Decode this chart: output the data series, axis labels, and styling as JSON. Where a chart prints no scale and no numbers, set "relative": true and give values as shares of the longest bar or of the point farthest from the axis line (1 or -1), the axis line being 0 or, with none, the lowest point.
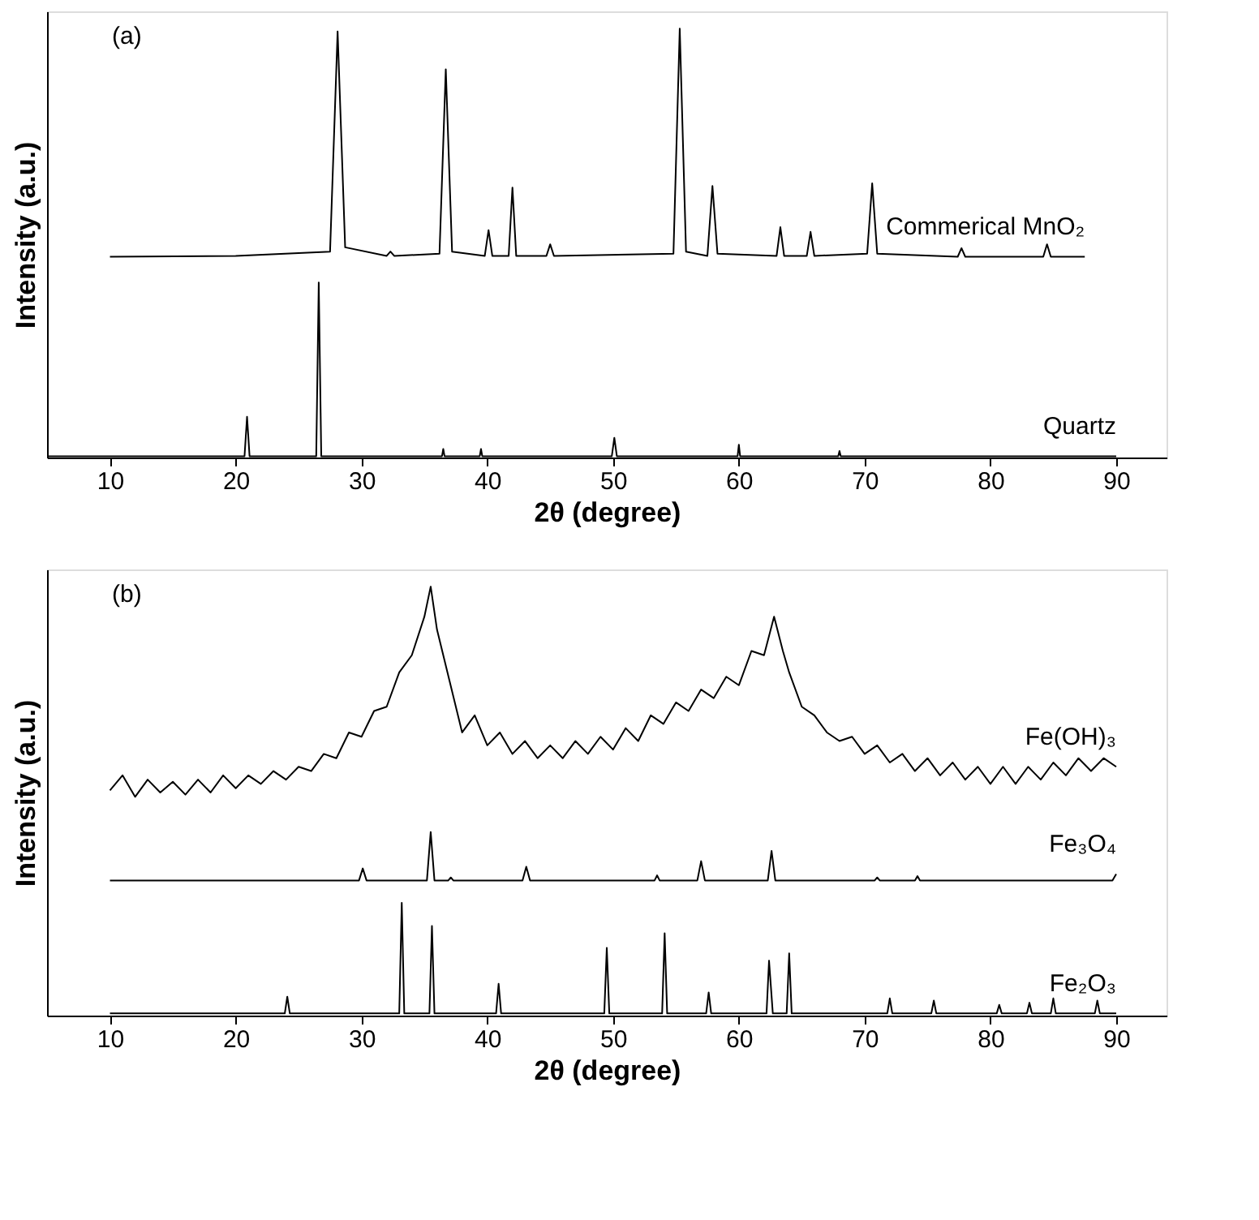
{
  "chart_data": [
    {
      "type": "line",
      "xlabel": "2θ (degree)",
      "ylabel": "Intensity (a.u.)",
      "relative": true,
      "xlim": [
        5,
        94
      ],
      "xticks": [
        10,
        20,
        30,
        40,
        50,
        60,
        70,
        80,
        90
      ],
      "grid": false,
      "annotations": [
        "(a)"
      ],
      "series": [
        {
          "name": "Commerical MnO₂",
          "color": "#000000",
          "x": [
            10,
            20,
            27.5,
            28.1,
            28.7,
            32,
            32.3,
            32.6,
            36.2,
            36.7,
            37.2,
            39.8,
            40.1,
            40.4,
            41.7,
            42,
            42.3,
            44.7,
            45,
            45.3,
            54.8,
            55.3,
            55.8,
            57.5,
            57.9,
            58.3,
            63,
            63.3,
            63.6,
            65.4,
            65.7,
            66,
            70.2,
            70.6,
            71,
            77.4,
            77.7,
            78,
            84.2,
            84.5,
            84.8,
            87.5
          ],
          "values": [
            0.468,
            0.47,
            0.48,
            0.993,
            0.49,
            0.47,
            0.48,
            0.47,
            0.475,
            0.905,
            0.48,
            0.47,
            0.53,
            0.47,
            0.47,
            0.629,
            0.47,
            0.47,
            0.497,
            0.47,
            0.475,
            1,
            0.48,
            0.47,
            0.633,
            0.475,
            0.47,
            0.537,
            0.47,
            0.47,
            0.526,
            0.47,
            0.475,
            0.639,
            0.475,
            0.468,
            0.488,
            0.468,
            0.468,
            0.497,
            0.468,
            0.468
          ]
        },
        {
          "name": "Quartz",
          "color": "#000000",
          "x": [
            5,
            20.7,
            20.9,
            21.1,
            26.4,
            26.6,
            26.8,
            36.4,
            36.5,
            36.6,
            39.4,
            39.5,
            39.6,
            49.9,
            50.1,
            50.3,
            59.9,
            60,
            60.1,
            67.9,
            68,
            68.1,
            90
          ],
          "values": [
            0.003,
            0.003,
            0.095,
            0.003,
            0.003,
            0.408,
            0.003,
            0.003,
            0.02,
            0.003,
            0.003,
            0.02,
            0.003,
            0.003,
            0.046,
            0.003,
            0.003,
            0.03,
            0.003,
            0.003,
            0.015,
            0.003,
            0.003
          ]
        }
      ]
    },
    {
      "type": "line",
      "xlabel": "2θ (degree)",
      "ylabel": "Intensity (a.u.)",
      "relative": true,
      "xlim": [
        5,
        94
      ],
      "xticks": [
        10,
        20,
        30,
        40,
        50,
        60,
        70,
        80,
        90
      ],
      "grid": false,
      "annotations": [
        "(b)"
      ],
      "series": [
        {
          "name": "Fe(OH)₃",
          "color": "#000000",
          "x": [
            10,
            11,
            12,
            13,
            14,
            15,
            16,
            17,
            18,
            19,
            20,
            21,
            22,
            23,
            24,
            25,
            26,
            27,
            28,
            29,
            30,
            31,
            32,
            33,
            34,
            35,
            35.5,
            36,
            37,
            38,
            39,
            40,
            41,
            42,
            43,
            44,
            45,
            46,
            47,
            48,
            49,
            50,
            51,
            52,
            53,
            54,
            55,
            56,
            57,
            58,
            59,
            60,
            61,
            62,
            62.8,
            63.5,
            64,
            65,
            66,
            67,
            68,
            69,
            70,
            71,
            72,
            73,
            74,
            75,
            76,
            77,
            78,
            79,
            80,
            81,
            82,
            83,
            84,
            85,
            86,
            87,
            88,
            89,
            90
          ],
          "values": [
            0.525,
            0.56,
            0.51,
            0.55,
            0.52,
            0.545,
            0.515,
            0.55,
            0.52,
            0.56,
            0.53,
            0.56,
            0.54,
            0.57,
            0.55,
            0.58,
            0.57,
            0.61,
            0.6,
            0.66,
            0.65,
            0.71,
            0.72,
            0.8,
            0.84,
            0.93,
            1.0,
            0.9,
            0.78,
            0.66,
            0.7,
            0.63,
            0.66,
            0.61,
            0.64,
            0.6,
            0.63,
            0.6,
            0.64,
            0.61,
            0.65,
            0.62,
            0.67,
            0.64,
            0.7,
            0.68,
            0.73,
            0.71,
            0.76,
            0.74,
            0.79,
            0.77,
            0.85,
            0.84,
            0.93,
            0.85,
            0.8,
            0.72,
            0.7,
            0.66,
            0.64,
            0.65,
            0.61,
            0.63,
            0.59,
            0.61,
            0.57,
            0.6,
            0.56,
            0.59,
            0.55,
            0.58,
            0.54,
            0.58,
            0.54,
            0.58,
            0.55,
            0.59,
            0.56,
            0.6,
            0.57,
            0.6,
            0.58
          ]
        },
        {
          "name": "Fe₃O₄",
          "color": "#000000",
          "x": [
            10,
            29.8,
            30.1,
            30.4,
            35.2,
            35.5,
            35.8,
            36.9,
            37.1,
            37.3,
            42.8,
            43.1,
            43.4,
            53.3,
            53.5,
            53.7,
            56.7,
            57,
            57.3,
            62.3,
            62.6,
            62.9,
            70.8,
            71,
            71.2,
            74,
            74.2,
            74.4,
            89.7,
            90
          ],
          "values": [
            0.315,
            0.315,
            0.343,
            0.315,
            0.315,
            0.428,
            0.315,
            0.315,
            0.322,
            0.315,
            0.315,
            0.347,
            0.315,
            0.315,
            0.327,
            0.315,
            0.315,
            0.36,
            0.315,
            0.315,
            0.384,
            0.315,
            0.315,
            0.322,
            0.315,
            0.315,
            0.325,
            0.315,
            0.315,
            0.33
          ]
        },
        {
          "name": "Fe₂O₃",
          "color": "#000000",
          "x": [
            10,
            23.9,
            24.1,
            24.3,
            33,
            33.2,
            33.4,
            35.4,
            35.6,
            35.8,
            40.7,
            40.9,
            41.1,
            49.3,
            49.5,
            49.7,
            53.9,
            54.1,
            54.3,
            57.4,
            57.6,
            57.8,
            62.2,
            62.4,
            62.7,
            63.8,
            64,
            64.2,
            71.8,
            72,
            72.2,
            75.3,
            75.5,
            75.7,
            80.5,
            80.7,
            80.9,
            82.9,
            83.1,
            83.3,
            84.8,
            85,
            85.2,
            88.3,
            88.5,
            88.7,
            90
          ],
          "values": [
            0.005,
            0.005,
            0.044,
            0.005,
            0.005,
            0.263,
            0.005,
            0.005,
            0.209,
            0.005,
            0.005,
            0.074,
            0.005,
            0.005,
            0.158,
            0.005,
            0.005,
            0.192,
            0.005,
            0.005,
            0.054,
            0.005,
            0.005,
            0.128,
            0.005,
            0.005,
            0.145,
            0.005,
            0.005,
            0.04,
            0.005,
            0.005,
            0.035,
            0.005,
            0.005,
            0.025,
            0.005,
            0.005,
            0.03,
            0.005,
            0.005,
            0.04,
            0.005,
            0.005,
            0.035,
            0.005,
            0.005
          ]
        }
      ]
    }
  ]
}
